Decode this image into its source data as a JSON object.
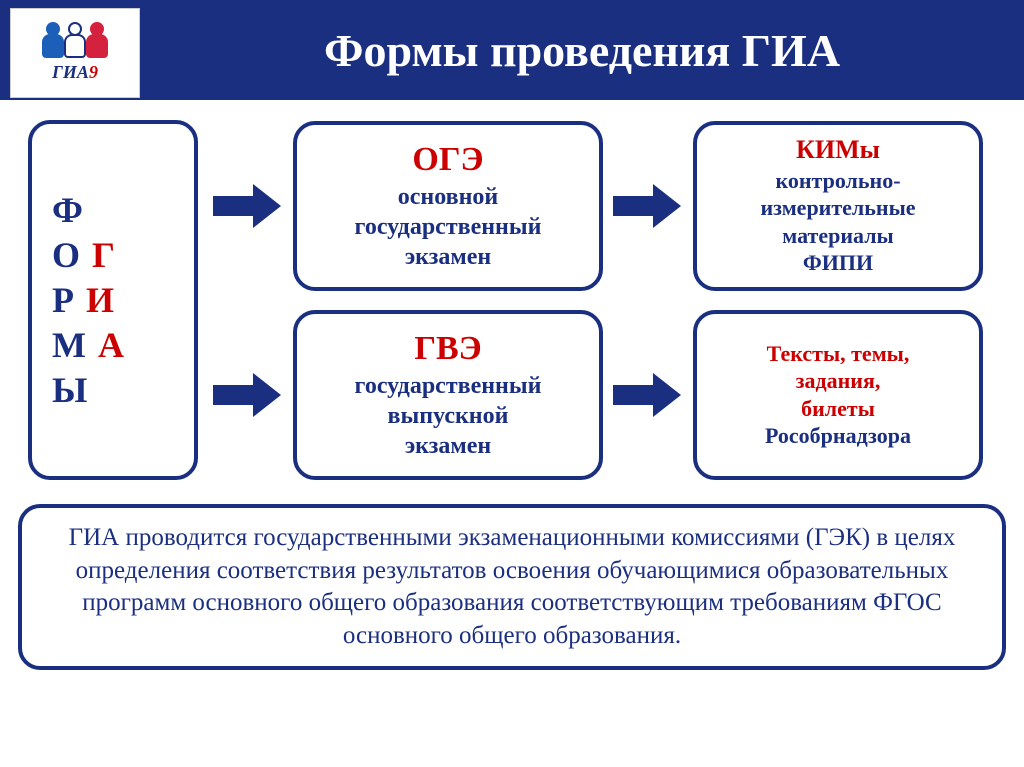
{
  "colors": {
    "header_bg": "#1b2f80",
    "header_text": "#ffffff",
    "border": "#1b2f80",
    "arrow": "#1b2f80",
    "text_dark": "#1b2f80",
    "text_red": "#cc0000",
    "logo_blue": "#1b5fb8",
    "logo_white_outline": "#1b2f80",
    "logo_red": "#d4213d"
  },
  "header": {
    "title": "Формы проведения ГИА",
    "logo_text_blue": "ГИА",
    "logo_text_red": "9"
  },
  "left": {
    "col1": [
      "Ф",
      "О",
      "Р",
      "М",
      "Ы"
    ],
    "col2": [
      "",
      "Г",
      "И",
      "А",
      ""
    ]
  },
  "box_oge": {
    "title": "ОГЭ",
    "line1": "основной",
    "line2": "государственный",
    "line3": "экзамен"
  },
  "box_kim": {
    "title": "КИМы",
    "line1": "контрольно-",
    "line2": "измерительные",
    "line3": "материалы",
    "line4": "ФИПИ"
  },
  "box_gve": {
    "title": "ГВЭ",
    "line1": "государственный",
    "line2": "выпускной",
    "line3": "экзамен"
  },
  "box_texts": {
    "line1": "Тексты, темы,",
    "line2": "задания,",
    "line3": "билеты",
    "line4": "Рособрнадзора"
  },
  "footer": "ГИА проводится государственными экзаменационными комиссиями (ГЭК) в целях определения соответствия результатов освоения обучающимися образовательных программ основного общего образования соответствующим требованиям ФГОС основного общего образования."
}
